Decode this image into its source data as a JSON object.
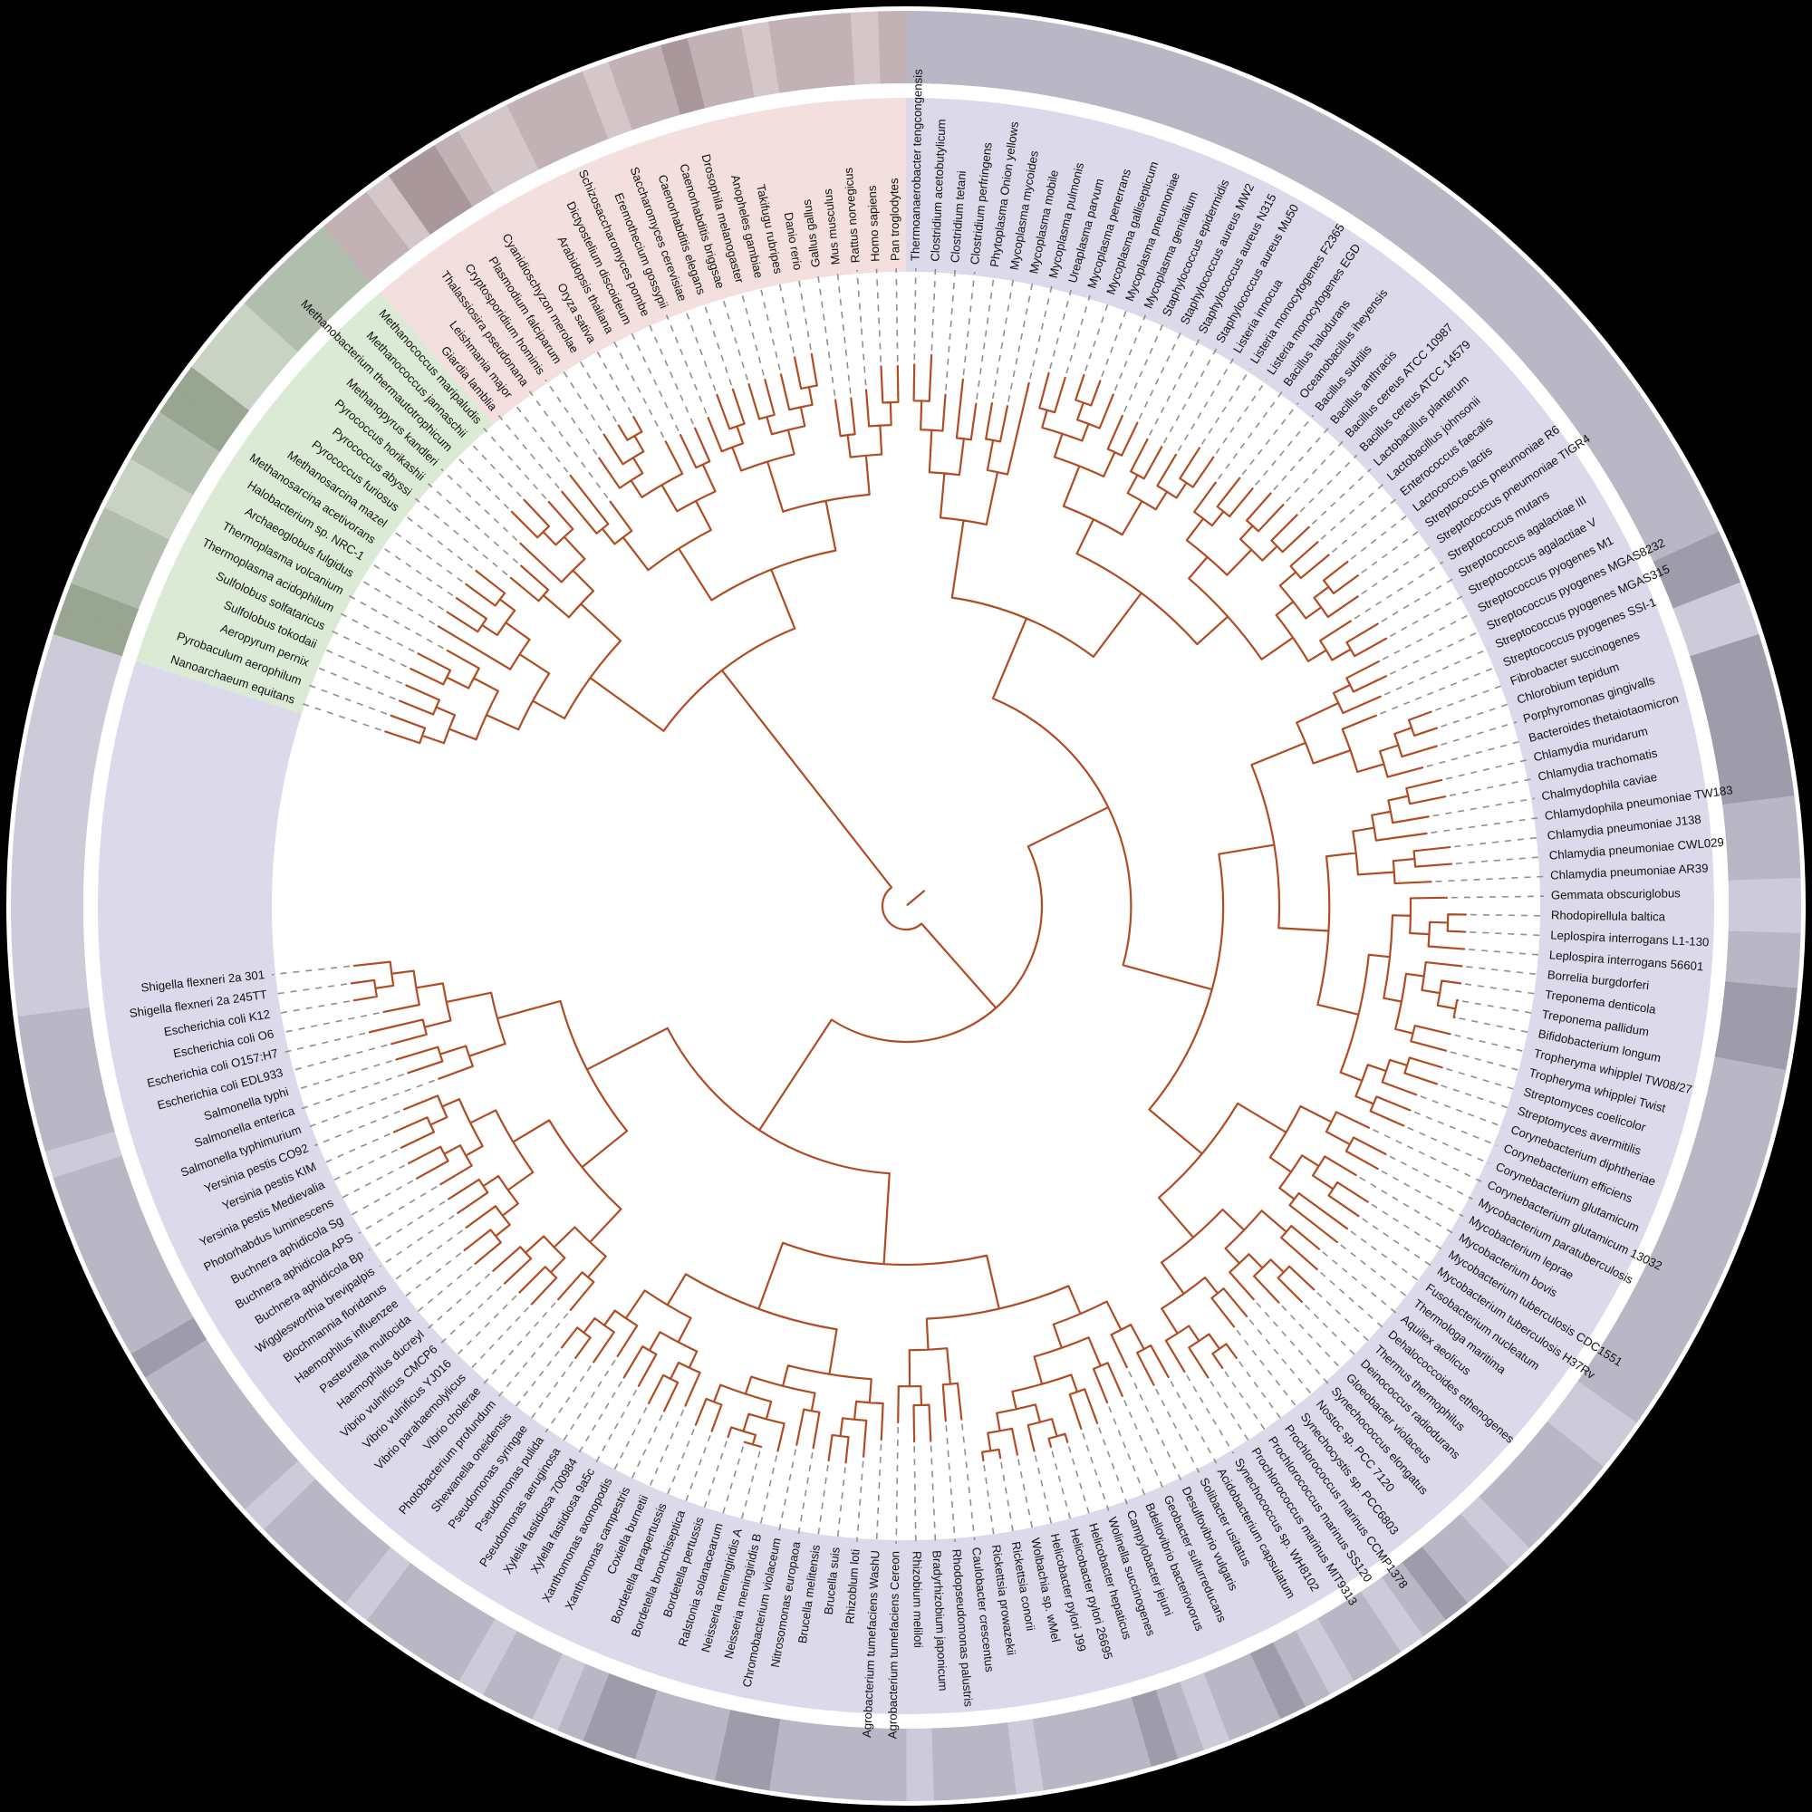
{
  "figure": {
    "kind": "circular-phylogenetic-tree",
    "background_color": "#000000",
    "tree_branch_color": "#b04b22",
    "connector_color": "#8f8f8f",
    "label_color": "#121212",
    "inner_disc_color": "#ffffff",
    "gap_ring_color": "#ffffff"
  },
  "domains": [
    {
      "id": "bacteria",
      "sector_color": "#dcdaea",
      "ring_colors": {
        "0": "#cdcbd9",
        "1": "#b9b7c6",
        "2": "#9e9cab"
      },
      "ring_shades": "111111111111111111111111111111111111122002222221110011222111111111111110011110112101101211012111101110111112211122101101111011110111111211111110111110",
      "species": [
        "Thermoanaerobacter tengcongensis",
        "Clostridium acetobutylicum",
        "Clostridium tetani",
        "Clostridium perfringens",
        "Phytoplasma Onion yellows",
        "Mycoplasma mycoides",
        "Mycoplasma mobile",
        "Mycoplasma pulmonis",
        "Ureaplasma parvum",
        "Mycoplasma penerrans",
        "Mycoplasma gallisepticum",
        "Mycoplasma pneumoniae",
        "Mycoplasma genitalium",
        "Staphylococcus epidermidis",
        "Staphylococcus aureus MW2",
        "Staphylococcus aureus N315",
        "Staphylococcus aureus Mu50",
        "Listeria innocua",
        "Listeria monocytogenes F2365",
        "Listeria monocytogenes EGD",
        "Bacillus halodurans",
        "Oceanobacillus iheyensis",
        "Bacillus subtilis",
        "Bacillus anthracis",
        "Bacillus cereus ATCC 10987",
        "Bacillus cereus ATCC 14579",
        "Lactobacillus planterum",
        "Lactobacillus johnsonii",
        "Enterococcus faecalis",
        "Lactococcus lactis",
        "Streptococcus pneumoniae R6",
        "Streptococcus pneumoniae TIGR4",
        "Streptococcus mutans",
        "Streptococcus agalactiae III",
        "Streptococcus agalactiae V",
        "Streptococcus pyogenes M1",
        "Streptococcus pyogenes MGAS8232",
        "Streptococcus pyogenes MGAS315",
        "Streptococcus pyogenes SSI-1",
        "Fibrobacter succinogenes",
        "Chlorobium tepidum",
        "Porphyromonas gingivalls",
        "Bacteroides thetaiotaomicron",
        "Chlamydia muridarum",
        "Chlamydia trachomatis",
        "Chalmydophila caviae",
        "Chlamydophila pneumoniae TW183",
        "Chlamydia pneumoniae J138",
        "Chlamydia pneumoniae CWL029",
        "Chlamydia pneumoniae AR39",
        "Gemmata obscuriglobus",
        "Rhodopirellula baltica",
        "Leplospira interrogans L1-130",
        "Leplospira interrogans 56601",
        "Borrelia burgdorferi",
        "Treponema denticola",
        "Treponema pallidum",
        "Bifidobacterium longum",
        "Tropheryma whipplel TW08/27",
        "Tropheryma whipplei Twist",
        "Streptomyces coelicolor",
        "Streptomyces avermitilis",
        "Corynebacterium diphtheriae",
        "Corynebacterium efficiens",
        "Corynebacterium glutamicum",
        "Corynebacterium glutamicum 13032",
        "Mycobacterium paratuberculosis",
        "Mycobacterium leprae",
        "Mycobacterium bovis",
        "Mycobacterium tuberculosis CDC1551",
        "Mycobacterium tuberculosis H37Rv",
        "Fusobacterium nucleatum",
        "Thermologa maritima",
        "Aquilex aeolicus",
        "Dehalococcoides ethenogenes",
        "Thermus thermophilus",
        "Deinococcus radiodurans",
        "Gloeobacter violaceus",
        "Synechococcus elongatus",
        "Nostoc sp. PCC 7120",
        "Synechocystis sp. PCC6803",
        "Prochlorococcus marinus CCMP1378",
        "Prochlorococcus marinus SS120",
        "Prochlorococcus marinus MIT9313",
        "Synechococcus sp. WH8102",
        "Acidobacterium capsulatum",
        "Solibacter usitatus",
        "Desulfovibrio vulgaris",
        "Geobacter sulfurreducans",
        "Bdellovibrio bacteriovorus",
        "Campylobacter jejuni",
        "Wolinella succinogenes",
        "Helicobacter hepaticus",
        "Helicobacter pylori 26695",
        "Helicobacter pylori J99",
        "Wolbachia sp. wMel",
        "Rickettsia conorii",
        "Rickettsia prowazekii",
        "Caulobacter crescentus",
        "Rhodopseudomonas palustris",
        "Bradyrhizobium japonicum",
        "Rhizobium meliloti",
        "Agrobacterium tumefaciens Cereon",
        "Agrobacterium tumefaciens WashU",
        "Rhizoblum loti",
        "Brucella suis",
        "Brucella melitensis",
        "Nitrosomonas europaoa",
        "Chromobacterium violaceum",
        "Neisseria meningiridis B",
        "Neisseria meningiridis A",
        "Ralstonia solanacearum",
        "Bordetella pertussis",
        "Bordetella bronchiseptica",
        "Bordetella parapertussis",
        "Coxiella burnetii",
        "Xanthomonas campestris",
        "Xanthomonas axonopodis",
        "Xylella fastidiosa 9a5c",
        "Xylelia fastidiosa 700984",
        "Pseudomonas aeruginosa",
        "Pseudomonas pulida",
        "Pseudomonas syringae",
        "Shewanella oneidensis",
        "Photobacterium profundum",
        "Vibrio cholerae",
        "Vibrio parahaemolylicus",
        "Vibrio vulnificus YJ016",
        "Vibrio vulnificus CMCP6",
        "Haemophilus ducreyl",
        "Pasteurella multocida",
        "Haemophilus influenzee",
        "Blochmannia floridanus",
        "Wigglesworthia brevipalpis",
        "Buchnera aphidicola Bp",
        "Buchnera aphidicola APS",
        "Buchnera aphidicola Sg",
        "Photorhabdus luminescens",
        "Yersinia pestis Medievalia",
        "Yersinia pestis KIM",
        "Yersinia pestis CO92",
        "Salmonella typhimurium",
        "Salmonella enterica",
        "Salmonella typhi",
        "Escherichia coli EDL933",
        "Escherichia coli O157:H7",
        "Escherichia coli O6",
        "Escherichia coli K12",
        "Shigella flexneri 2a 245TT",
        "Shigella flexneri 2a 301"
      ]
    },
    {
      "id": "archaea",
      "sector_color": "#daead4",
      "ring_colors": {
        "0": "#c9d3c4",
        "1": "#b2bead",
        "2": "#97a591"
      },
      "ring_shades": "221110011220001111",
      "species": [
        "Nanoarchaeum equitans",
        "Pyrobaculum aerophilum",
        "Aeropyrum pernix",
        "Sulfolobus tokodaii",
        "Sulfolobus solfataricus",
        "Thermoplasma acidophilum",
        "Thermoplasma volcanium",
        "Archaeoglobus fulgidus",
        "Halobacterium sp. NRC-1",
        "Methanosarcina acetivorans",
        "Methanosarcina mazel",
        "Pyrococcus furiosus",
        "Pyrococcus abyssi",
        "Pyrococcus horikashii",
        "Methanopyrus kandleri",
        "Methanobacterium thermautotrophicum",
        "Methanococcus jannaschii",
        "Methanococcus maripaludis"
      ]
    },
    {
      "id": "eukaryota",
      "sector_color": "#f4dfdf",
      "ring_colors": {
        "0": "#d4c6c9",
        "1": "#c2b2b6",
        "2": "#a9979c"
      },
      "ring_shades": "11022100111011211011101",
      "species": [
        "Giardia lamblia",
        "Leishmania major",
        "Thalassiosira pseudonana",
        "Cryptosporidium hominis",
        "Plasmodium falciparum",
        "Cyanidioschyzon merolae",
        "Oryza sativa",
        "Arabidopsis thaliana",
        "Dictyostelium discoideum",
        "Schizosaccharomyces pombe",
        "Eremothecium gossypii",
        "Saccharomyces cerevisiae",
        "Caenorhabditis elegans",
        "Caenorhabditis briggsae",
        "Drosophila melanogaster",
        "Anopheles gambiae",
        "Takifugu rubripes",
        "Danio rerio",
        "Gallus gallus",
        "Mus musculus",
        "Rattus norvegicus",
        "Homo sapiens",
        "Pan troglodytes"
      ]
    }
  ]
}
